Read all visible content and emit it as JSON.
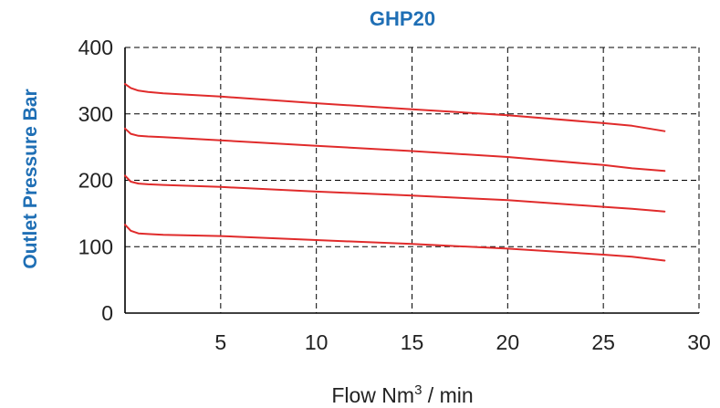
{
  "chart_data": {
    "type": "line",
    "title": "GHP20",
    "ylabel": "Outlet Pressure Bar",
    "xlabel": "Flow Nm",
    "xlabel_sup": "3",
    "xlabel_suffix": " / min",
    "xlim": [
      0,
      30
    ],
    "ylim": [
      0,
      400
    ],
    "xticks": [
      5,
      10,
      15,
      20,
      25,
      30
    ],
    "yticks": [
      0,
      100,
      200,
      300,
      400
    ],
    "grid": true,
    "colors": {
      "title": "#1f6fb5",
      "ylabel": "#1f6fb5",
      "series": "#e02b2b"
    },
    "series": [
      {
        "x": [
          0,
          0.3,
          0.7,
          1.2,
          2,
          5,
          10,
          15,
          20,
          25,
          26.5,
          28.2
        ],
        "values": [
          345,
          339,
          335,
          333,
          331,
          326,
          316,
          307,
          298,
          286,
          282,
          274
        ]
      },
      {
        "x": [
          0,
          0.3,
          0.7,
          1.2,
          2,
          5,
          10,
          15,
          20,
          25,
          26.5,
          28.2
        ],
        "values": [
          278,
          270,
          267,
          266,
          265,
          260,
          252,
          244,
          235,
          223,
          218,
          214
        ]
      },
      {
        "x": [
          0,
          0.3,
          0.7,
          1.2,
          2,
          5,
          10,
          15,
          20,
          25,
          26.5,
          28.2
        ],
        "values": [
          207,
          198,
          195,
          194,
          193,
          190,
          183,
          177,
          170,
          160,
          157,
          153
        ]
      },
      {
        "x": [
          0,
          0.3,
          0.7,
          1.2,
          2,
          5,
          10,
          15,
          20,
          25,
          26.5,
          28.2
        ],
        "values": [
          133,
          124,
          120,
          119,
          118,
          116,
          110,
          104,
          97,
          88,
          85,
          79
        ]
      }
    ]
  }
}
